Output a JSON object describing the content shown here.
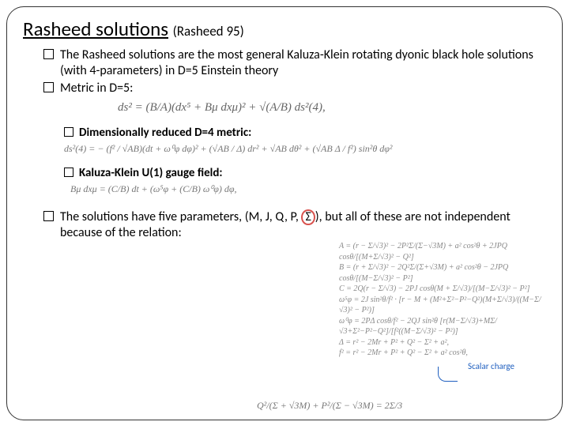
{
  "title": {
    "main": "Rasheed solutions",
    "sub": "(Rasheed 95)"
  },
  "bullet1": "The Rasheed solutions are the most general Kaluza-Klein rotating dyonic black hole solutions (with 4-parameters) in D=5 Einstein theory",
  "bullet2_prefix": "Metric in D=5:",
  "eq_d5": "ds² = (B/A)(dx⁵ + Bμ dxμ)² + √(A/B) ds²(4),",
  "sub1": "Dimensionally reduced D=4 metric:",
  "eq_d4": "ds²(4) = − (f² / √AB)(dt + ω⁰φ dφ)² + (√AB / Δ) dr² + √AB dθ² + (√AB Δ / f²) sin²θ dφ²",
  "sub2": "Kaluza-Klein U(1) gauge field:",
  "eq_u1": "Bμ dxμ = (C/B) dt + (ω⁵φ + (C/B) ω⁰φ) dφ,",
  "defs": {
    "A": "A = (r − Σ/√3)² − 2P²Σ/(Σ−√3M) + a² cos²θ + 2JPQ cosθ/[(M+Σ/√3)² − Q²]",
    "B": "B = (r + Σ/√3)² − 2Q²Σ/(Σ+√3M) + a² cos²θ − 2JPQ cosθ/[(M−Σ/√3)² − P²]",
    "C": "C = 2Q(r − Σ/√3) − 2PJ cosθ(M + Σ/√3)/[(M−Σ/√3)² − P²]",
    "w5": "ω⁵φ = 2J sin²θ/f² · [r − M + (M²+Σ²−P²−Q²)(M+Σ/√3)/((M−Σ/√3)² − P²)]",
    "w0": "ω⁰φ = 2PΔ cosθ/f² − 2QJ sin²θ [r(M−Σ/√3)+MΣ/√3+Σ²−P²−Q²]/[f²((M−Σ/√3)² − P²)]",
    "Delta": "Δ = r² − 2Mr + P² + Q² − Σ² + a²,",
    "f2": "f² = r² − 2Mr + P² + Q² − Σ² + a² cos²θ,"
  },
  "scalar_label": "Scalar charge",
  "bullet3_pre": "The solutions have five parameters, (M, J, Q, P, ",
  "bullet3_sigma": "Σ",
  "bullet3_post": "), but all of these are not independent  because of the relation:",
  "rel_eq": "Q²/(Σ + √3M) + P²/(Σ − √3M) = 2Σ/3",
  "colors": {
    "accent_blue": "#1f5fbf",
    "accent_red": "#d9534f",
    "eq_gray": "#777"
  }
}
